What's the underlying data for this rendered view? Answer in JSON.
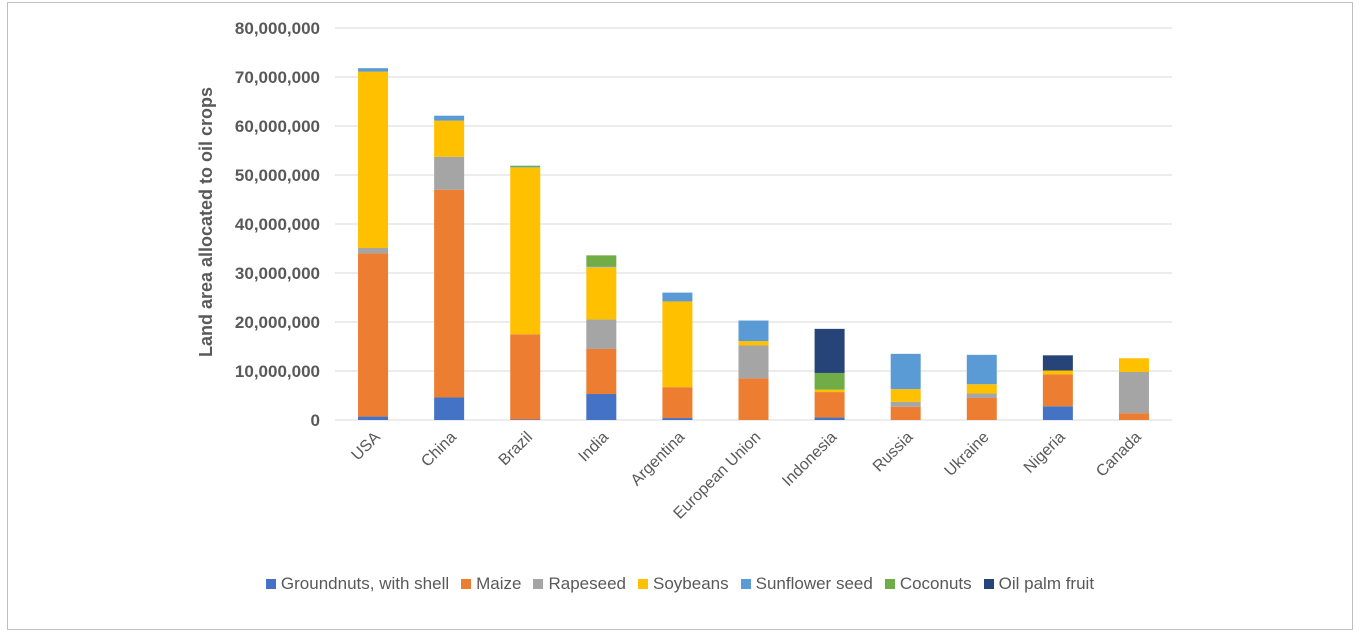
{
  "chart_data": {
    "type": "bar",
    "stacked": true,
    "title": "",
    "xlabel": "",
    "ylabel": "Land area allocated to oil crops",
    "ylim": [
      0,
      80000000
    ],
    "yticks": [
      0,
      10000000,
      20000000,
      30000000,
      40000000,
      50000000,
      60000000,
      70000000,
      80000000
    ],
    "ytick_labels": [
      "0",
      "10,000,000",
      "20,000,000",
      "30,000,000",
      "40,000,000",
      "50,000,000",
      "60,000,000",
      "70,000,000",
      "80,000,000"
    ],
    "grid": true,
    "legend_position": "bottom",
    "categories": [
      "USA",
      "China",
      "Brazil",
      "India",
      "Argentina",
      "European Union",
      "Indonesia",
      "Russia",
      "Ukraine",
      "Nigeria",
      "Canada"
    ],
    "series": [
      {
        "name": "Groundnuts, with shell",
        "color": "#4472c4",
        "values": [
          700000,
          4600000,
          100000,
          5300000,
          400000,
          0,
          500000,
          0,
          0,
          2800000,
          0
        ]
      },
      {
        "name": "Maize",
        "color": "#ed7d31",
        "values": [
          33300000,
          42400000,
          17400000,
          9200000,
          6300000,
          8500000,
          5200000,
          2700000,
          4500000,
          6500000,
          1400000
        ]
      },
      {
        "name": "Rapeseed",
        "color": "#a5a5a5",
        "values": [
          1100000,
          6700000,
          0,
          6000000,
          0,
          6700000,
          0,
          1000000,
          900000,
          0,
          8400000
        ]
      },
      {
        "name": "Soybeans",
        "color": "#ffc000",
        "values": [
          36000000,
          7400000,
          34000000,
          10700000,
          17500000,
          900000,
          500000,
          2600000,
          1900000,
          800000,
          2800000
        ]
      },
      {
        "name": "Sunflower seed",
        "color": "#5b9bd5",
        "values": [
          700000,
          1000000,
          100000,
          200000,
          1800000,
          4200000,
          0,
          7200000,
          6000000,
          0,
          0
        ]
      },
      {
        "name": "Coconuts",
        "color": "#70ad47",
        "values": [
          0,
          0,
          300000,
          2200000,
          0,
          0,
          3400000,
          0,
          0,
          0,
          0
        ]
      },
      {
        "name": "Oil palm fruit",
        "color": "#264478",
        "values": [
          0,
          0,
          0,
          0,
          0,
          0,
          9000000,
          0,
          0,
          3100000,
          0
        ]
      }
    ]
  }
}
